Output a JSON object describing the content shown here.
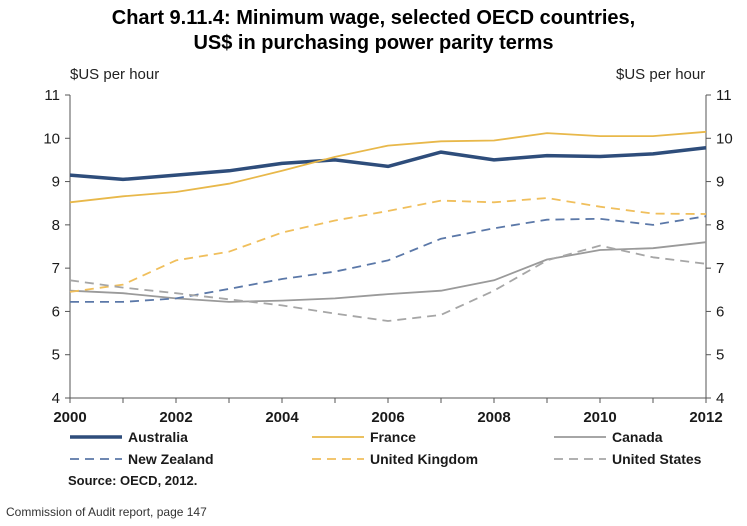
{
  "chart_data": {
    "type": "line",
    "title_line1": "Chart 9.11.4: Minimum wage, selected OECD countries,",
    "title_line2": "US$ in purchasing power parity terms",
    "ylabel_left": "$US per hour",
    "ylabel_right": "$US per hour",
    "xlabel": "",
    "ylim": [
      4,
      11
    ],
    "yticks": [
      "4",
      "5",
      "6",
      "7",
      "8",
      "9",
      "10",
      "11"
    ],
    "xlim": [
      2000,
      2012
    ],
    "xticks": [
      "2000",
      "2002",
      "2004",
      "2006",
      "2008",
      "2010",
      "2012"
    ],
    "x": [
      2000,
      2001,
      2002,
      2003,
      2004,
      2005,
      2006,
      2007,
      2008,
      2009,
      2010,
      2011,
      2012
    ],
    "series": [
      {
        "name": "Australia",
        "color": "#2e4d7b",
        "style": "solid-thick",
        "values": [
          9.15,
          9.05,
          9.15,
          9.25,
          9.42,
          9.5,
          9.35,
          9.68,
          9.5,
          9.6,
          9.58,
          9.64,
          9.78
        ]
      },
      {
        "name": "France",
        "color": "#e8b84a",
        "style": "solid",
        "values": [
          8.52,
          8.66,
          8.76,
          8.95,
          9.25,
          9.57,
          9.83,
          9.93,
          9.95,
          10.12,
          10.05,
          10.05,
          10.15
        ]
      },
      {
        "name": "Canada",
        "color": "#9a9a9a",
        "style": "solid",
        "values": [
          6.48,
          6.42,
          6.3,
          6.22,
          6.25,
          6.3,
          6.4,
          6.48,
          6.72,
          7.2,
          7.42,
          7.46,
          7.6
        ]
      },
      {
        "name": "New Zealand",
        "color": "#5b78a8",
        "style": "dashed",
        "values": [
          6.22,
          6.22,
          6.3,
          6.52,
          6.75,
          6.92,
          7.18,
          7.68,
          7.92,
          8.12,
          8.14,
          8.0,
          8.2
        ]
      },
      {
        "name": "United Kingdom",
        "color": "#f0bf5c",
        "style": "dashed",
        "values": [
          6.45,
          6.62,
          7.18,
          7.38,
          7.82,
          8.1,
          8.32,
          8.56,
          8.52,
          8.62,
          8.42,
          8.26,
          8.25
        ]
      },
      {
        "name": "United States",
        "color": "#a6a6a6",
        "style": "dashed",
        "values": [
          6.72,
          6.55,
          6.42,
          6.28,
          6.14,
          5.95,
          5.78,
          5.92,
          6.48,
          7.18,
          7.52,
          7.25,
          7.1
        ]
      }
    ],
    "legend": [
      "Australia",
      "France",
      "Canada",
      "New Zealand",
      "United Kingdom",
      "United States"
    ],
    "legend_placement": "bottom",
    "grid": false
  },
  "source": "Source: OECD, 2012.",
  "caption": "Commission of Audit report, page 147"
}
